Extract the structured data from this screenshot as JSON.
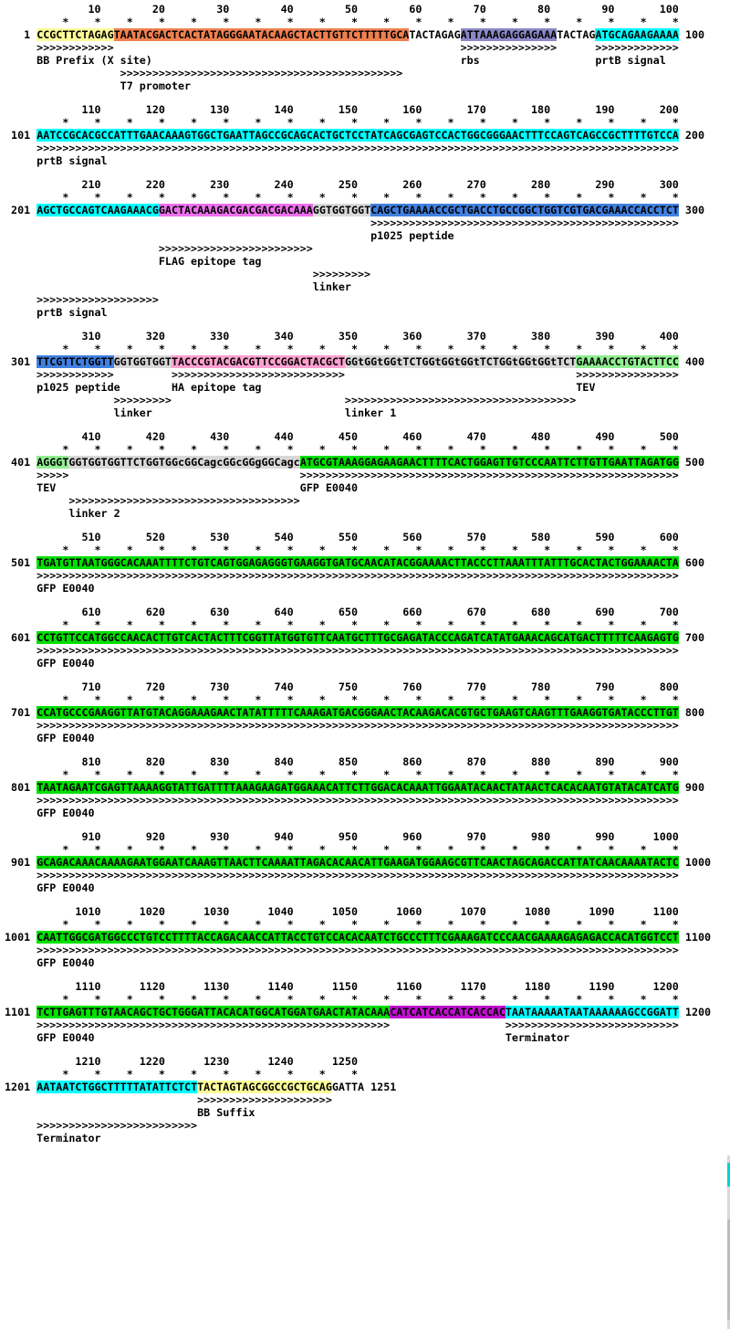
{
  "view": {
    "background": "#ffffff",
    "text_color": "#000000",
    "tick_char": "*",
    "arrow_char": ">",
    "gutter_width": 4
  },
  "scrollbar": {
    "track_color": "#d9d9d9",
    "thumb_color": "#00d2d2",
    "lower_color": "#b9bec2"
  },
  "feature_colors": {
    "bb_prefix": "#FCFC99",
    "t7_region": "#F08050",
    "rbs": "#8C88C8",
    "prtb_signal": "#00FFFF",
    "flag": "#EE70EE",
    "linker": "#D8D8D8",
    "p1025": "#4080E0",
    "ha": "#FFA0D0",
    "tev": "#90EE90",
    "gfp": "#00E000",
    "his": "#C010D0",
    "terminator": "#00FFFF",
    "bb_suffix": "#FCFC99",
    "plain": ""
  },
  "blocks": [
    {
      "start": 1,
      "right_label": "100",
      "segments": [
        {
          "feature": "bb_prefix",
          "text": "CCGCTTCTAGAG"
        },
        {
          "feature": "t7_region",
          "text": "TAATACGACTCACTATAGGGAATACAAGCTACTTGTTCTTTTTGCA"
        },
        {
          "feature": "plain",
          "text": "TACTAGAG"
        },
        {
          "feature": "rbs",
          "text": "ATTAAAGAGGAGAAA"
        },
        {
          "feature": "plain",
          "text": "TACTAG"
        },
        {
          "feature": "prtb_signal",
          "text": "ATGCAGAAGAAAA"
        }
      ],
      "annotations": [
        {
          "type": "arrows",
          "runs": [
            {
              "col": 1,
              "len": 12
            },
            {
              "col": 67,
              "len": 15
            },
            {
              "col": 88,
              "len": 13
            }
          ]
        },
        {
          "type": "labels",
          "runs": [
            {
              "col": 1,
              "text": "BB Prefix (X site)"
            },
            {
              "col": 67,
              "text": "rbs"
            },
            {
              "col": 88,
              "text": "prtB signal"
            }
          ]
        },
        {
          "type": "arrows",
          "runs": [
            {
              "col": 14,
              "len": 44
            }
          ]
        },
        {
          "type": "labels",
          "runs": [
            {
              "col": 14,
              "text": "T7 promoter"
            }
          ]
        }
      ]
    },
    {
      "start": 101,
      "right_label": "200",
      "segments": [
        {
          "feature": "prtb_signal",
          "text": "AATCCGCACGCCATTTGAACAAAGTGGCTGAATTAGCCGCAGCACTGCTCCTATCAGCGAGTCCACTGGCGGGAACTTTCCAGTCAGCCGCTTTTGTCCA"
        }
      ],
      "annotations": [
        {
          "type": "arrows",
          "runs": [
            {
              "col": 1,
              "len": 100
            }
          ]
        },
        {
          "type": "labels",
          "runs": [
            {
              "col": 1,
              "text": "prtB signal"
            }
          ]
        }
      ]
    },
    {
      "start": 201,
      "right_label": "300",
      "segments": [
        {
          "feature": "prtb_signal",
          "text": "AGCTGCCAGTCAAGAAACG"
        },
        {
          "feature": "flag",
          "text": "GACTACAAAGACGACGACGACAAA"
        },
        {
          "feature": "linker",
          "text": "GGTGGTGGT"
        },
        {
          "feature": "p1025",
          "text": "CAGCTGAAAACCGCTGACCTGCCGGCTGGTCGTGACGAAACCACCTCT"
        }
      ],
      "annotations": [
        {
          "type": "arrows",
          "runs": [
            {
              "col": 53,
              "len": 48
            }
          ]
        },
        {
          "type": "labels",
          "runs": [
            {
              "col": 53,
              "text": "p1025 peptide"
            }
          ]
        },
        {
          "type": "arrows",
          "runs": [
            {
              "col": 20,
              "len": 24
            }
          ]
        },
        {
          "type": "labels",
          "runs": [
            {
              "col": 20,
              "text": "FLAG epitope tag"
            }
          ]
        },
        {
          "type": "arrows",
          "runs": [
            {
              "col": 44,
              "len": 9
            }
          ]
        },
        {
          "type": "labels",
          "runs": [
            {
              "col": 44,
              "text": "linker"
            }
          ]
        },
        {
          "type": "arrows",
          "runs": [
            {
              "col": 1,
              "len": 19
            }
          ]
        },
        {
          "type": "labels",
          "runs": [
            {
              "col": 1,
              "text": "prtB signal"
            }
          ]
        }
      ]
    },
    {
      "start": 301,
      "right_label": "400",
      "segments": [
        {
          "feature": "p1025",
          "text": "TTCGTTCTGGTT"
        },
        {
          "feature": "linker",
          "text": "GGTGGTGGT"
        },
        {
          "feature": "ha",
          "text": "TACCCGTACGACGTTCCGGACTACGCT"
        },
        {
          "feature": "linker",
          "text": "GGtGGtGGtTCTGGtGGtGGtTCTGGtGGtGGtTCT"
        },
        {
          "feature": "tev",
          "text": "GAAAACCTGTACTTCC"
        }
      ],
      "annotations": [
        {
          "type": "arrows",
          "runs": [
            {
              "col": 1,
              "len": 12
            },
            {
              "col": 22,
              "len": 27
            },
            {
              "col": 85,
              "len": 16
            }
          ]
        },
        {
          "type": "labels",
          "runs": [
            {
              "col": 1,
              "text": "p1025 peptide"
            },
            {
              "col": 22,
              "text": "HA epitope tag"
            },
            {
              "col": 85,
              "text": "TEV"
            }
          ]
        },
        {
          "type": "arrows",
          "runs": [
            {
              "col": 13,
              "len": 9
            },
            {
              "col": 49,
              "len": 36
            }
          ]
        },
        {
          "type": "labels",
          "runs": [
            {
              "col": 13,
              "text": "linker"
            },
            {
              "col": 49,
              "text": "linker 1"
            }
          ]
        }
      ]
    },
    {
      "start": 401,
      "right_label": "500",
      "segments": [
        {
          "feature": "tev",
          "text": "AGGGT"
        },
        {
          "feature": "linker",
          "text": "GGTGGTGGTTCTGGTGGcGGCagcGGcGGgGGCagc"
        },
        {
          "feature": "gfp",
          "text": "ATGCGTAAAGGAGAAGAACTTTTCACTGGAGTTGTCCCAATTCTTGTTGAATTAGATGG"
        }
      ],
      "annotations": [
        {
          "type": "arrows",
          "runs": [
            {
              "col": 1,
              "len": 5
            },
            {
              "col": 42,
              "len": 59
            }
          ]
        },
        {
          "type": "labels",
          "runs": [
            {
              "col": 1,
              "text": "TEV"
            },
            {
              "col": 42,
              "text": "GFP E0040"
            }
          ]
        },
        {
          "type": "arrows",
          "runs": [
            {
              "col": 6,
              "len": 36
            }
          ]
        },
        {
          "type": "labels",
          "runs": [
            {
              "col": 6,
              "text": "linker 2"
            }
          ]
        }
      ]
    },
    {
      "start": 501,
      "right_label": "600",
      "segments": [
        {
          "feature": "gfp",
          "text": "TGATGTTAATGGGCACAAATTTTCTGTCAGTGGAGAGGGTGAAGGTGATGCAACATACGGAAAACTTACCCTTAAATTTATTTGCACTACTGGAAAACTA"
        }
      ],
      "annotations": [
        {
          "type": "arrows",
          "runs": [
            {
              "col": 1,
              "len": 100
            }
          ]
        },
        {
          "type": "labels",
          "runs": [
            {
              "col": 1,
              "text": "GFP E0040"
            }
          ]
        }
      ]
    },
    {
      "start": 601,
      "right_label": "700",
      "segments": [
        {
          "feature": "gfp",
          "text": "CCTGTTCCATGGCCAACACTTGTCACTACTTTCGGTTATGGTGTTCAATGCTTTGCGAGATACCCAGATCATATGAAACAGCATGACTTTTTCAAGAGTG"
        }
      ],
      "annotations": [
        {
          "type": "arrows",
          "runs": [
            {
              "col": 1,
              "len": 100
            }
          ]
        },
        {
          "type": "labels",
          "runs": [
            {
              "col": 1,
              "text": "GFP E0040"
            }
          ]
        }
      ]
    },
    {
      "start": 701,
      "right_label": "800",
      "segments": [
        {
          "feature": "gfp",
          "text": "CCATGCCCGAAGGTTATGTACAGGAAAGAACTATATTTTTCAAAGATGACGGGAACTACAAGACACGTGCTGAAGTCAAGTTTGAAGGTGATACCCTTGT"
        }
      ],
      "annotations": [
        {
          "type": "arrows",
          "runs": [
            {
              "col": 1,
              "len": 100
            }
          ]
        },
        {
          "type": "labels",
          "runs": [
            {
              "col": 1,
              "text": "GFP E0040"
            }
          ]
        }
      ]
    },
    {
      "start": 801,
      "right_label": "900",
      "segments": [
        {
          "feature": "gfp",
          "text": "TAATAGAATCGAGTTAAAAGGTATTGATTTTAAAGAAGATGGAAACATTCTTGGACACAAATTGGAATACAACTATAACTCACACAATGTATACATCATG"
        }
      ],
      "annotations": [
        {
          "type": "arrows",
          "runs": [
            {
              "col": 1,
              "len": 100
            }
          ]
        },
        {
          "type": "labels",
          "runs": [
            {
              "col": 1,
              "text": "GFP E0040"
            }
          ]
        }
      ]
    },
    {
      "start": 901,
      "right_label": "1000",
      "segments": [
        {
          "feature": "gfp",
          "text": "GCAGACAAACAAAAGAATGGAATCAAAGTTAACTTCAAAATTAGACACAACATTGAAGATGGAAGCGTTCAACTAGCAGACCATTATCAACAAAATACTC"
        }
      ],
      "annotations": [
        {
          "type": "arrows",
          "runs": [
            {
              "col": 1,
              "len": 100
            }
          ]
        },
        {
          "type": "labels",
          "runs": [
            {
              "col": 1,
              "text": "GFP E0040"
            }
          ]
        }
      ]
    },
    {
      "start": 1001,
      "right_label": "1100",
      "segments": [
        {
          "feature": "gfp",
          "text": "CAATTGGCGATGGCCCTGTCCTTTTACCAGACAACCATTACCTGTCCACACAATCTGCCCTTTCGAAAGATCCCAACGAAAAGAGAGACCACATGGTCCT"
        }
      ],
      "annotations": [
        {
          "type": "arrows",
          "runs": [
            {
              "col": 1,
              "len": 100
            }
          ]
        },
        {
          "type": "labels",
          "runs": [
            {
              "col": 1,
              "text": "GFP E0040"
            }
          ]
        }
      ]
    },
    {
      "start": 1101,
      "right_label": "1200",
      "segments": [
        {
          "feature": "gfp",
          "text": "TCTTGAGTTTGTAACAGCTGCTGGGATTACACATGGCATGGATGAACTATACAAA"
        },
        {
          "feature": "his",
          "text": "CATCATCACCATCACCAC"
        },
        {
          "feature": "terminator",
          "text": "TAATAAAAATAATAAAAAAGCCGGATT"
        }
      ],
      "annotations": [
        {
          "type": "arrows",
          "runs": [
            {
              "col": 1,
              "len": 55
            },
            {
              "col": 74,
              "len": 27
            }
          ]
        },
        {
          "type": "labels",
          "runs": [
            {
              "col": 1,
              "text": "GFP E0040"
            },
            {
              "col": 74,
              "text": "Terminator"
            }
          ]
        }
      ]
    },
    {
      "start": 1201,
      "right_label": "1251",
      "segments": [
        {
          "feature": "terminator",
          "text": "AATAATCTGGCTTTTTATATTCTCT"
        },
        {
          "feature": "bb_suffix",
          "text": "TACTAGTAGCGGCCGCTGCAG"
        },
        {
          "feature": "plain",
          "text": "GATTA"
        }
      ],
      "annotations": [
        {
          "type": "arrows",
          "runs": [
            {
              "col": 26,
              "len": 21
            }
          ]
        },
        {
          "type": "labels",
          "runs": [
            {
              "col": 26,
              "text": "BB Suffix"
            }
          ]
        },
        {
          "type": "arrows",
          "runs": [
            {
              "col": 1,
              "len": 25
            }
          ]
        },
        {
          "type": "labels",
          "runs": [
            {
              "col": 1,
              "text": "Terminator"
            }
          ]
        }
      ]
    }
  ]
}
